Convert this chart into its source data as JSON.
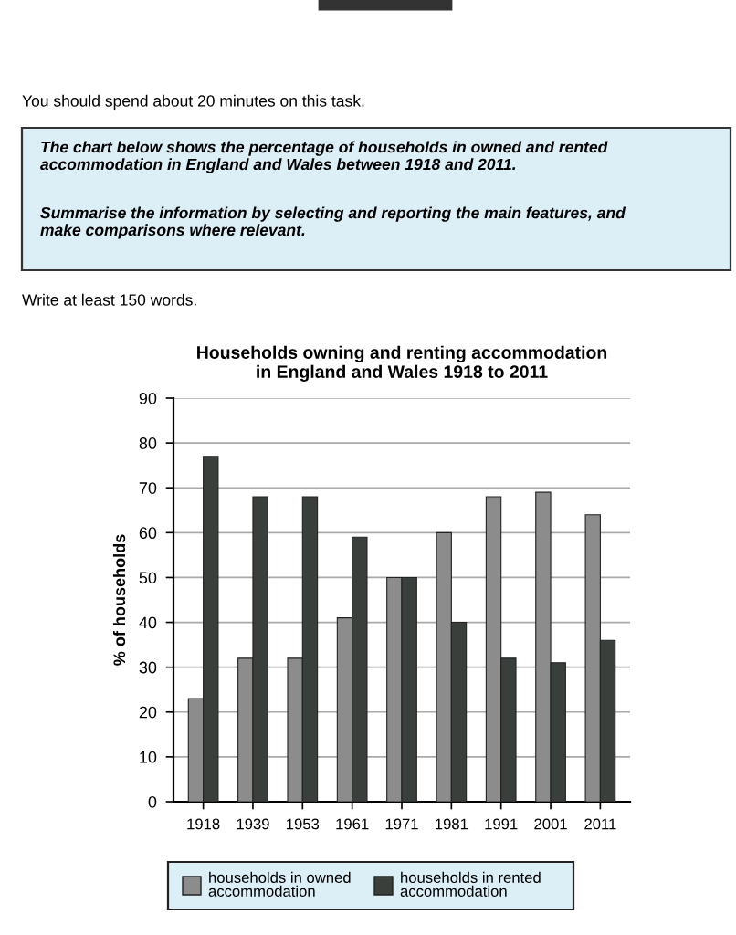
{
  "chart_data": {
    "type": "bar",
    "title": "Households owning and renting accommodation\nin England and Wales 1918 to 2011",
    "ylabel": "% of households",
    "annotations": [
      "You should spend about 20 minutes on this task.",
      "The chart below shows the percentage of households in owned and rented accommodation in England and Wales between 1918 and 2011.",
      "Summarise the information by selecting and reporting the main features, and make comparisons where relevant.",
      "Write at least 150 words."
    ],
    "categories": [
      "1918",
      "1939",
      "1953",
      "1961",
      "1971",
      "1981",
      "1991",
      "2001",
      "2011"
    ],
    "series": [
      {
        "name": "households in owned accommodation",
        "color": "#8c8c8c",
        "values": [
          23,
          32,
          32,
          41,
          50,
          60,
          68,
          69,
          64
        ]
      },
      {
        "name": "households in rented accommodation",
        "color": "#3a3f3c",
        "values": [
          77,
          68,
          68,
          59,
          50,
          40,
          32,
          31,
          36
        ]
      }
    ],
    "ylim": [
      0,
      90
    ],
    "yticks": [
      0,
      10,
      20,
      30,
      40,
      50,
      60,
      70,
      80,
      90
    ],
    "grid": "y",
    "legend": "bottom"
  }
}
